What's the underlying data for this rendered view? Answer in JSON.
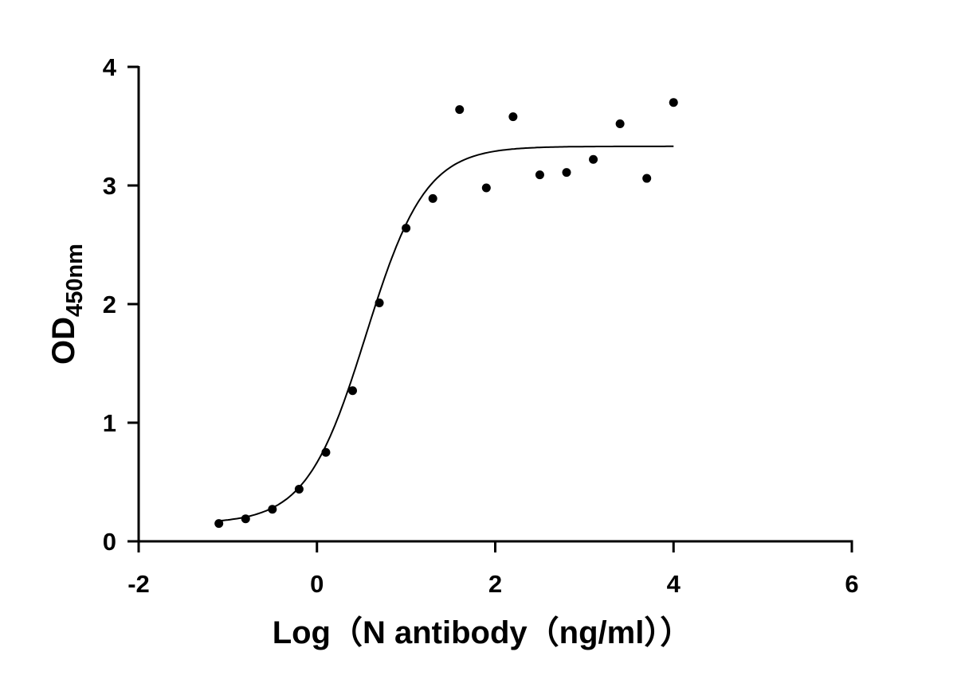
{
  "chart_data": {
    "type": "scatter",
    "title": "",
    "xlabel": "Log（N antibody（ng/ml））",
    "ylabel_main": "OD",
    "ylabel_sub": "450nm",
    "xlim": [
      -2,
      6
    ],
    "ylim": [
      0,
      4
    ],
    "xticks": [
      "-2",
      "0",
      "2",
      "4",
      "6"
    ],
    "yticks": [
      "0",
      "1",
      "2",
      "3",
      "4"
    ],
    "grid": false,
    "colors": {
      "points": "#000000",
      "curve": "#000000"
    },
    "points": {
      "x": [
        -1.1,
        -0.8,
        -0.5,
        -0.2,
        0.1,
        0.4,
        0.7,
        1.0,
        1.3,
        1.6,
        1.9,
        2.2,
        2.5,
        2.8,
        3.1,
        3.4,
        3.7,
        4.0
      ],
      "y": [
        0.15,
        0.19,
        0.27,
        0.44,
        0.75,
        1.27,
        2.01,
        2.64,
        2.89,
        3.64,
        2.98,
        3.58,
        3.09,
        3.11,
        3.22,
        3.52,
        3.06,
        3.7
      ]
    },
    "fit": {
      "model": "4PL",
      "bottom": 0.15,
      "top": 3.33,
      "logEC50": 0.55,
      "hill": 1.3,
      "x_range": [
        -1.1,
        4.0
      ]
    }
  }
}
